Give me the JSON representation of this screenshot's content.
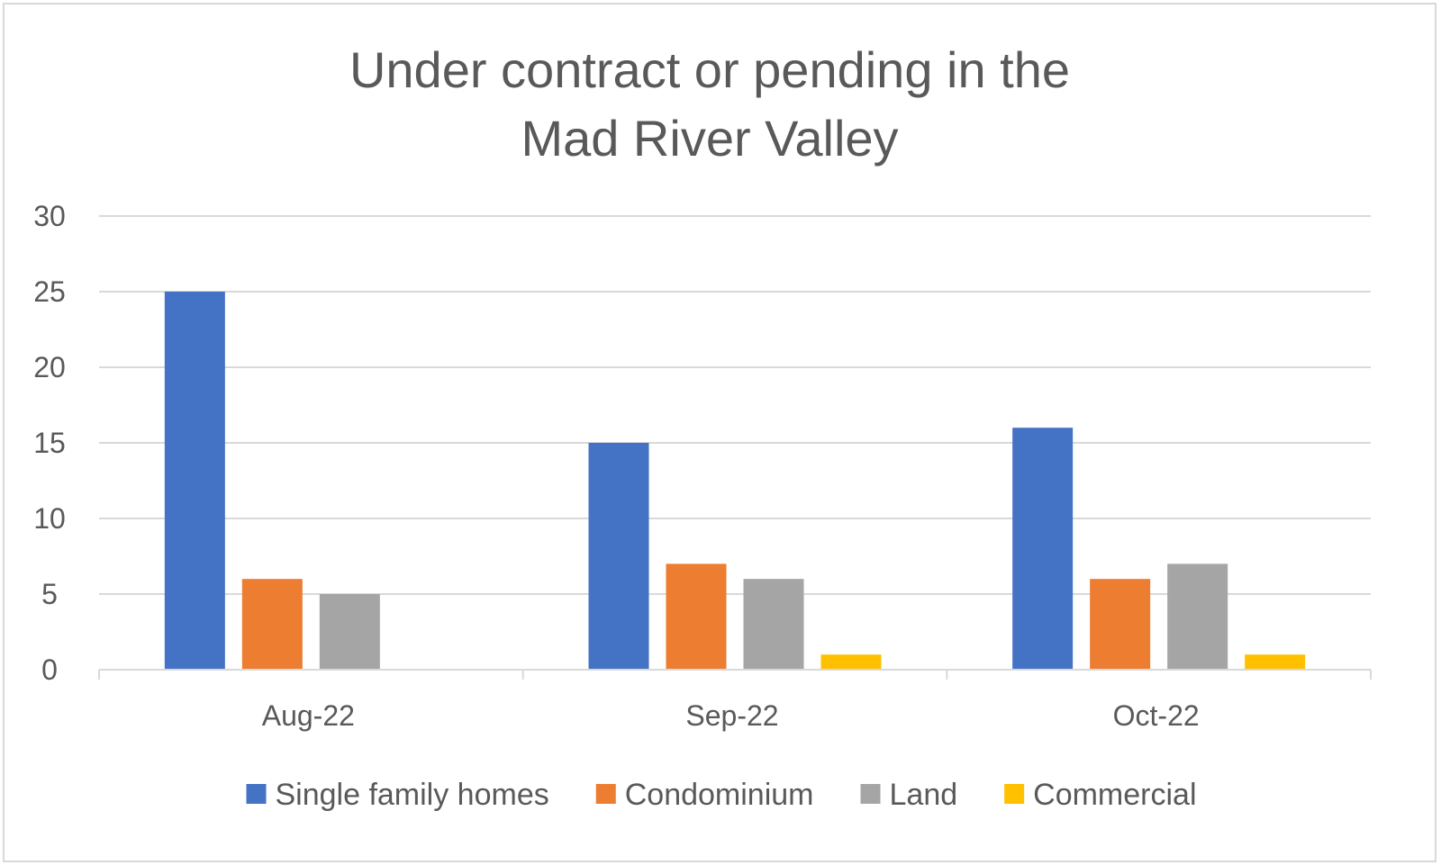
{
  "chart_data": {
    "type": "bar",
    "title_lines": [
      "Under contract or pending in the",
      "Mad River Valley"
    ],
    "categories": [
      "Aug-22",
      "Sep-22",
      "Oct-22"
    ],
    "series": [
      {
        "name": "Single family homes",
        "color": "#4472c4",
        "values": [
          25,
          15,
          16
        ]
      },
      {
        "name": "Condominium",
        "color": "#ed7d31",
        "values": [
          6,
          7,
          6
        ]
      },
      {
        "name": "Land",
        "color": "#a5a5a5",
        "values": [
          5,
          6,
          7
        ]
      },
      {
        "name": "Commercial",
        "color": "#ffc000",
        "values": [
          0,
          1,
          1
        ]
      }
    ],
    "y_ticks": [
      "0",
      "5",
      "10",
      "15",
      "20",
      "25",
      "30"
    ],
    "ylim": [
      0,
      30
    ],
    "grid": true,
    "legend_position": "bottom",
    "gridline_color": "#d9d9d9",
    "text_color": "#595959"
  }
}
